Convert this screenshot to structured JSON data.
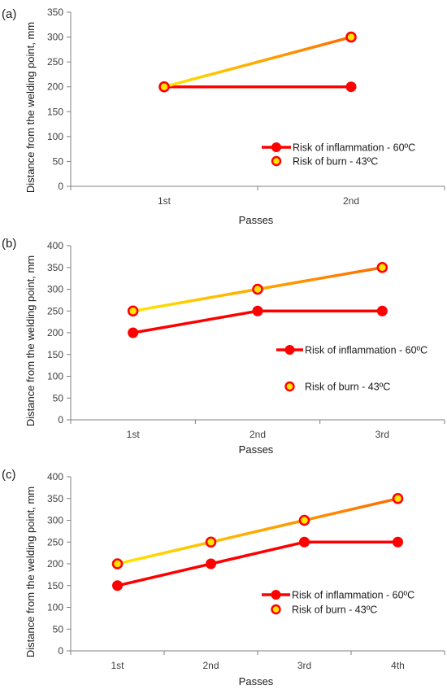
{
  "colors": {
    "inflammation": "#ff0000",
    "burn_start": "#ffe600",
    "burn_end": "#ff6a00",
    "marker_fill_burn": "#ffe600",
    "marker_edge_burn": "#ff0000",
    "axis": "#808080"
  },
  "chart_data": [
    {
      "type": "line",
      "panel_label": "(a)",
      "xlabel": "Passes",
      "ylabel": "Distance from the welding point, mm",
      "categories": [
        "1st",
        "2nd"
      ],
      "ylim": [
        0,
        350
      ],
      "yticks": [
        0,
        50,
        100,
        150,
        200,
        250,
        300,
        350
      ],
      "legend_position": "bottom-right",
      "series": [
        {
          "name": "Risk of inflammation - 60ºC",
          "values": [
            200,
            200
          ],
          "style": "inflammation"
        },
        {
          "name": "Risk of burn - 43ºC",
          "values": [
            200,
            300
          ],
          "style": "burn"
        }
      ]
    },
    {
      "type": "line",
      "panel_label": "(b)",
      "xlabel": "Passes",
      "ylabel": "Distance from the welding point, mm",
      "categories": [
        "1st",
        "2nd",
        "3rd"
      ],
      "ylim": [
        0,
        400
      ],
      "yticks": [
        0,
        50,
        100,
        150,
        200,
        250,
        300,
        350,
        400
      ],
      "legend_position": "right",
      "series": [
        {
          "name": "Risk of inflammation - 60ºC",
          "values": [
            200,
            250,
            250
          ],
          "style": "inflammation"
        },
        {
          "name": "Risk of burn - 43ºC",
          "values": [
            250,
            300,
            350
          ],
          "style": "burn"
        }
      ]
    },
    {
      "type": "line",
      "panel_label": "(c)",
      "xlabel": "Passes",
      "ylabel": "Distance from the welding point, mm",
      "categories": [
        "1st",
        "2nd",
        "3rd",
        "4th"
      ],
      "ylim": [
        0,
        400
      ],
      "yticks": [
        0,
        50,
        100,
        150,
        200,
        250,
        300,
        350,
        400
      ],
      "legend_position": "bottom-right",
      "series": [
        {
          "name": "Risk of inflammation - 60ºC",
          "values": [
            150,
            200,
            250,
            250
          ],
          "style": "inflammation"
        },
        {
          "name": "Risk of burn - 43ºC",
          "values": [
            200,
            250,
            300,
            350
          ],
          "style": "burn"
        }
      ]
    }
  ]
}
